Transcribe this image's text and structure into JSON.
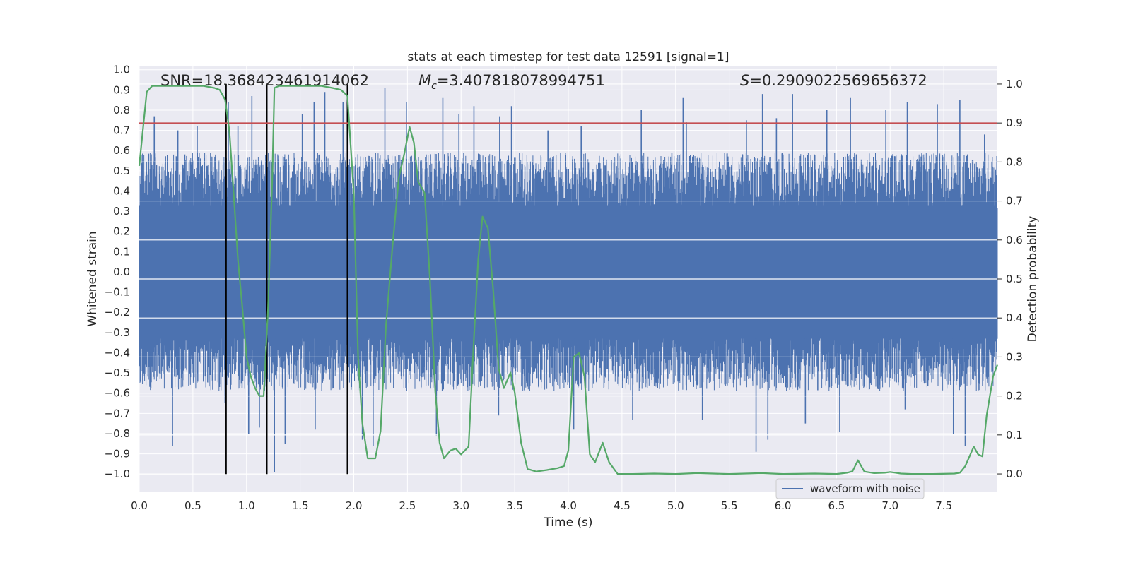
{
  "chart_data": {
    "type": "line",
    "title": "stats at each timestep for test data 12591 [signal=1]",
    "xlabel": "Time (s)",
    "ylabel": "Whitened strain",
    "y2label": "Detection probability",
    "xlim": [
      0.0,
      8.0
    ],
    "ylim": [
      -1.09,
      1.02
    ],
    "y2lim": [
      -0.047,
      1.047
    ],
    "xticks": [
      0.0,
      0.5,
      1.0,
      1.5,
      2.0,
      2.5,
      3.0,
      3.5,
      4.0,
      4.5,
      5.0,
      5.5,
      6.0,
      6.5,
      7.0,
      7.5
    ],
    "xtick_labels": [
      "0.0",
      "0.5",
      "1.0",
      "1.5",
      "2.0",
      "2.5",
      "3.0",
      "3.5",
      "4.0",
      "4.5",
      "5.0",
      "5.5",
      "6.0",
      "6.5",
      "7.0",
      "7.5"
    ],
    "yticks": [
      1.0,
      0.9,
      0.8,
      0.7,
      0.6,
      0.5,
      0.4,
      0.3,
      0.2,
      0.1,
      0.0,
      -0.1,
      -0.2,
      -0.3,
      -0.4,
      -0.5,
      -0.6,
      -0.7,
      -0.8,
      -0.9,
      -1.0
    ],
    "ytick_labels": [
      "1.0",
      "0.9",
      "0.8",
      "0.7",
      "0.6",
      "0.5",
      "0.4",
      "0.3",
      "0.2",
      "0.1",
      "0.0",
      "−0.1",
      "−0.2",
      "−0.3",
      "−0.4",
      "−0.5",
      "−0.6",
      "−0.7",
      "−0.8",
      "−0.9",
      "−1.0"
    ],
    "y2ticks": [
      1.0,
      0.9,
      0.8,
      0.7,
      0.6,
      0.5,
      0.4,
      0.3,
      0.2,
      0.1,
      0.0
    ],
    "y2tick_labels": [
      "1.0",
      "0.9",
      "0.8",
      "0.7",
      "0.6",
      "0.5",
      "0.4",
      "0.3",
      "0.2",
      "0.1",
      "0.0"
    ],
    "annotations": {
      "snr": "SNR=18.368423461914062",
      "mc_symbol": "M",
      "mc_sub": "c",
      "mc_value": "=3.407818078994751",
      "s_symbol": "S",
      "s_value": "=0.2909022569656372"
    },
    "threshold": {
      "value": 0.9,
      "axis": "right",
      "color": "#c44e52"
    },
    "vlines": [
      {
        "x": 0.81,
        "ymin": -1.0,
        "ymax": 0.93
      },
      {
        "x": 1.19,
        "ymin": -1.0,
        "ymax": 0.93
      },
      {
        "x": 1.94,
        "ymin": -1.0,
        "ymax": 0.93
      }
    ],
    "waveform": {
      "name": "waveform with noise",
      "color": "#4c72b0",
      "core_upper": 0.33,
      "core_lower": -0.33,
      "high_spikes": [
        {
          "x": 0.14,
          "y": 0.77
        },
        {
          "x": 0.36,
          "y": 0.7
        },
        {
          "x": 0.54,
          "y": 0.72
        },
        {
          "x": 0.83,
          "y": 0.84
        },
        {
          "x": 0.92,
          "y": 0.72
        },
        {
          "x": 1.05,
          "y": 0.87
        },
        {
          "x": 1.19,
          "y": 0.87
        },
        {
          "x": 1.52,
          "y": 0.78
        },
        {
          "x": 1.63,
          "y": 0.84
        },
        {
          "x": 1.73,
          "y": 0.89
        },
        {
          "x": 1.9,
          "y": 0.84
        },
        {
          "x": 2.29,
          "y": 0.91
        },
        {
          "x": 2.49,
          "y": 0.84
        },
        {
          "x": 2.83,
          "y": 0.86
        },
        {
          "x": 2.98,
          "y": 0.78
        },
        {
          "x": 3.12,
          "y": 0.82
        },
        {
          "x": 3.36,
          "y": 0.77
        },
        {
          "x": 3.47,
          "y": 0.82
        },
        {
          "x": 3.81,
          "y": 0.7
        },
        {
          "x": 4.12,
          "y": 0.72
        },
        {
          "x": 4.68,
          "y": 0.8
        },
        {
          "x": 5.07,
          "y": 0.86
        },
        {
          "x": 5.1,
          "y": 0.74
        },
        {
          "x": 5.66,
          "y": 0.75
        },
        {
          "x": 5.81,
          "y": 0.88
        },
        {
          "x": 5.94,
          "y": 0.76
        },
        {
          "x": 6.09,
          "y": 0.88
        },
        {
          "x": 6.41,
          "y": 0.8
        },
        {
          "x": 6.63,
          "y": 0.86
        },
        {
          "x": 6.96,
          "y": 0.8
        },
        {
          "x": 7.16,
          "y": 0.84
        },
        {
          "x": 7.44,
          "y": 0.83
        },
        {
          "x": 7.65,
          "y": 0.85
        },
        {
          "x": 7.88,
          "y": 0.68
        }
      ],
      "low_spikes": [
        {
          "x": 0.31,
          "y": -0.86
        },
        {
          "x": 0.8,
          "y": -0.65
        },
        {
          "x": 1.02,
          "y": -0.8
        },
        {
          "x": 1.12,
          "y": -0.77
        },
        {
          "x": 1.26,
          "y": -0.99
        },
        {
          "x": 1.36,
          "y": -0.85
        },
        {
          "x": 1.64,
          "y": -0.78
        },
        {
          "x": 2.08,
          "y": -0.83
        },
        {
          "x": 2.18,
          "y": -0.86
        },
        {
          "x": 2.77,
          "y": -0.81
        },
        {
          "x": 3.35,
          "y": -0.71
        },
        {
          "x": 4.05,
          "y": -0.78
        },
        {
          "x": 4.6,
          "y": -0.73
        },
        {
          "x": 5.25,
          "y": -0.73
        },
        {
          "x": 5.75,
          "y": -0.89
        },
        {
          "x": 5.86,
          "y": -0.83
        },
        {
          "x": 6.21,
          "y": -0.75
        },
        {
          "x": 6.53,
          "y": -0.79
        },
        {
          "x": 7.14,
          "y": -0.68
        },
        {
          "x": 7.59,
          "y": -0.8
        },
        {
          "x": 7.7,
          "y": -0.86
        }
      ]
    },
    "probability": {
      "name": "detection probability",
      "color": "#55a868",
      "x": [
        0.0,
        0.07,
        0.12,
        0.2,
        0.3,
        0.4,
        0.5,
        0.6,
        0.7,
        0.75,
        0.8,
        0.84,
        0.88,
        0.92,
        0.96,
        1.0,
        1.04,
        1.08,
        1.12,
        1.16,
        1.2,
        1.24,
        1.26,
        1.3,
        1.4,
        1.5,
        1.6,
        1.7,
        1.8,
        1.88,
        1.94,
        2.0,
        2.04,
        2.08,
        2.13,
        2.2,
        2.25,
        2.3,
        2.36,
        2.42,
        2.47,
        2.52,
        2.56,
        2.6,
        2.66,
        2.71,
        2.76,
        2.8,
        2.84,
        2.9,
        2.95,
        3.0,
        3.07,
        3.12,
        3.16,
        3.2,
        3.25,
        3.3,
        3.35,
        3.4,
        3.46,
        3.5,
        3.56,
        3.62,
        3.7,
        3.8,
        3.9,
        3.96,
        4.0,
        4.05,
        4.1,
        4.15,
        4.2,
        4.25,
        4.32,
        4.38,
        4.46,
        4.6,
        4.8,
        5.0,
        5.2,
        5.5,
        5.8,
        6.0,
        6.3,
        6.5,
        6.6,
        6.65,
        6.7,
        6.76,
        6.85,
        6.95,
        7.0,
        7.1,
        7.2,
        7.4,
        7.6,
        7.65,
        7.7,
        7.78,
        7.82,
        7.86,
        7.9,
        7.96,
        8.0
      ],
      "y": [
        0.79,
        0.98,
        0.995,
        0.995,
        0.995,
        0.995,
        0.995,
        0.995,
        0.99,
        0.985,
        0.96,
        0.88,
        0.72,
        0.55,
        0.43,
        0.3,
        0.25,
        0.22,
        0.2,
        0.2,
        0.42,
        0.76,
        0.99,
        0.995,
        0.995,
        0.995,
        0.995,
        0.995,
        0.99,
        0.985,
        0.97,
        0.72,
        0.3,
        0.13,
        0.04,
        0.04,
        0.11,
        0.38,
        0.58,
        0.76,
        0.82,
        0.89,
        0.85,
        0.75,
        0.72,
        0.5,
        0.21,
        0.08,
        0.04,
        0.06,
        0.065,
        0.05,
        0.07,
        0.35,
        0.55,
        0.66,
        0.63,
        0.47,
        0.27,
        0.22,
        0.26,
        0.21,
        0.08,
        0.013,
        0.006,
        0.01,
        0.015,
        0.02,
        0.06,
        0.3,
        0.31,
        0.25,
        0.05,
        0.03,
        0.08,
        0.03,
        0.0,
        0.0,
        0.001,
        0.0,
        0.002,
        0.0,
        0.002,
        0.0,
        0.001,
        0.0,
        0.003,
        0.007,
        0.035,
        0.006,
        0.002,
        0.003,
        0.005,
        0.001,
        0.0,
        0.0,
        0.001,
        0.003,
        0.02,
        0.07,
        0.05,
        0.045,
        0.15,
        0.25,
        0.28
      ]
    },
    "legend": {
      "label": "waveform with noise",
      "position": "lower-right"
    }
  }
}
